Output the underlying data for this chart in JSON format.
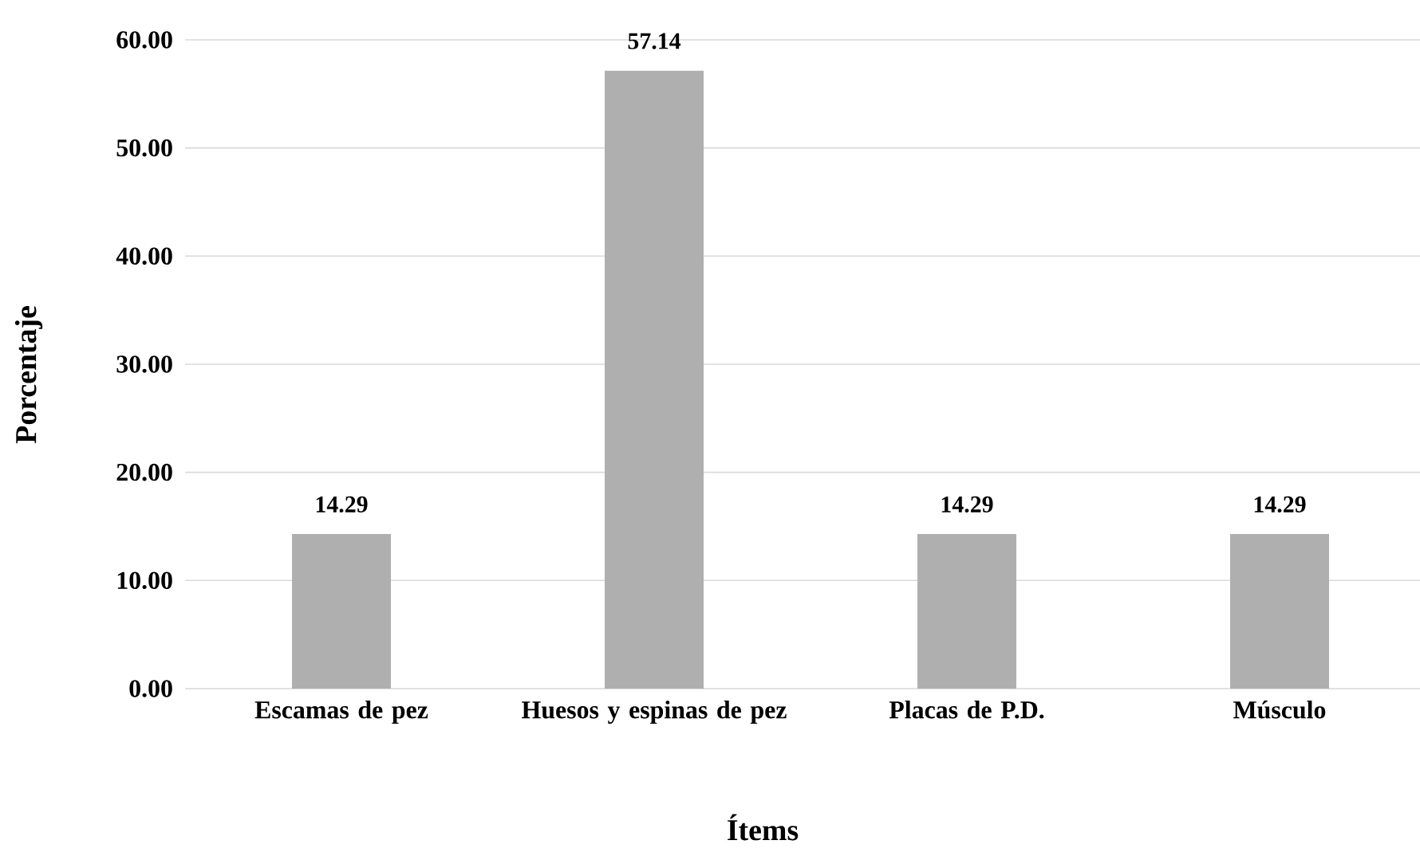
{
  "chart_data": {
    "type": "bar",
    "xlabel": "Ítems",
    "ylabel": "Porcentaje",
    "categories": [
      "Escamas de pez",
      "Huesos y espinas de pez",
      "Placas de P.D.",
      "Músculo"
    ],
    "values": [
      14.29,
      57.14,
      14.29,
      14.29
    ],
    "color": "#afafaf",
    "ylim": [
      0,
      60
    ],
    "yticks": [
      {
        "value": 0,
        "label": "0.00"
      },
      {
        "value": 10,
        "label": "10.00"
      },
      {
        "value": 20,
        "label": "20.00"
      },
      {
        "value": 30,
        "label": "30.00"
      },
      {
        "value": 40,
        "label": "40.00"
      },
      {
        "value": 50,
        "label": "50.00"
      },
      {
        "value": 60,
        "label": "60.00"
      }
    ],
    "grid": "y",
    "data_labels": true
  }
}
